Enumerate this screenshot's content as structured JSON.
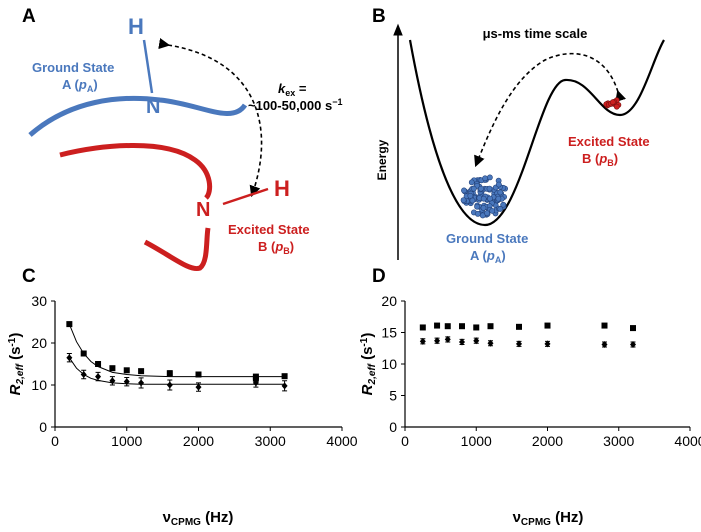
{
  "panels": {
    "labels": [
      "A",
      "B",
      "C",
      "D"
    ]
  },
  "panel_a": {
    "h_top": "H",
    "n_top": "N",
    "ground_state": "Ground State",
    "ground_pop": [
      "A (",
      "p",
      "A",
      ")"
    ],
    "kex": [
      "k",
      "ex",
      " ="
    ],
    "kex_range": [
      "~100-50,000 s",
      "−1"
    ],
    "n_bottom": "N",
    "h_bottom": "H",
    "excited_state": "Excited State",
    "excited_pop": [
      "B (",
      "p",
      "B",
      ")"
    ]
  },
  "panel_b": {
    "title": "μs-ms time scale",
    "y_label": "Energy",
    "excited_state": "Excited State",
    "excited_pop": [
      "B (",
      "p",
      "B",
      ")"
    ],
    "ground_state": "Ground State",
    "ground_pop": [
      "A (",
      "p",
      "A",
      ")"
    ]
  },
  "chart_data": [
    {
      "type": "scatter",
      "x_label": [
        "ν",
        "CPMG",
        " (Hz)"
      ],
      "y_label": [
        "R",
        "2,eff",
        " (s",
        "-1",
        ")"
      ],
      "xlim": [
        0,
        4000
      ],
      "xticks": [
        0,
        1000,
        2000,
        3000,
        4000
      ],
      "ylim": [
        0,
        30
      ],
      "yticks": [
        0,
        10,
        20,
        30
      ],
      "series": [
        {
          "color": "#000000",
          "marker": "square",
          "x": [
            200,
            400,
            600,
            800,
            1000,
            1200,
            1600,
            2000,
            2800,
            2800,
            3200
          ],
          "values": [
            24.5,
            17.5,
            15,
            14,
            13.5,
            13.3,
            12.8,
            12.5,
            12,
            11.5,
            12.1
          ],
          "errors": [
            0.5,
            0.5,
            0.6,
            0.5,
            0.5,
            0.5,
            0.6,
            0.5,
            0.5,
            0.5,
            0.5
          ]
        },
        {
          "color": "#000000",
          "marker": "diamond",
          "x": [
            200,
            400,
            600,
            800,
            1000,
            1200,
            1600,
            2000,
            2800,
            3200
          ],
          "values": [
            16.5,
            12.5,
            12,
            11,
            10.8,
            10.5,
            10,
            9.5,
            10.5,
            9.8
          ],
          "errors": [
            1,
            1,
            1,
            1,
            1,
            1.2,
            1.2,
            1,
            1,
            1.2
          ]
        },
        {
          "color": "#000000",
          "marker": "line",
          "x": [
            200,
            300,
            400,
            500,
            600,
            800,
            1000,
            1200,
            1600,
            2000,
            2400,
            2800,
            3200
          ],
          "values": [
            24.5,
            20.3,
            17.5,
            15.6,
            14.4,
            13,
            12.5,
            12.2,
            12,
            12,
            12,
            12,
            12
          ]
        },
        {
          "color": "#000000",
          "marker": "line",
          "x": [
            200,
            300,
            400,
            500,
            600,
            800,
            1000,
            1200,
            1600,
            2000,
            2400,
            2800,
            3200
          ],
          "values": [
            16.5,
            14,
            12.5,
            11.6,
            11.1,
            10.5,
            10.3,
            10.2,
            10.2,
            10.2,
            10.2,
            10.2,
            10.2
          ]
        }
      ]
    },
    {
      "type": "scatter",
      "x_label": [
        "ν",
        "CPMG",
        " (Hz)"
      ],
      "y_label": [
        "R",
        "2,eff",
        " (s",
        "-1",
        ")"
      ],
      "xlim": [
        0,
        4000
      ],
      "xticks": [
        0,
        1000,
        2000,
        3000,
        4000
      ],
      "ylim": [
        0,
        20
      ],
      "yticks": [
        0,
        5,
        10,
        15,
        20
      ],
      "series": [
        {
          "color": "#000000",
          "marker": "square",
          "x": [
            250,
            450,
            600,
            800,
            1000,
            1200,
            1600,
            2000,
            2800,
            3200
          ],
          "values": [
            15.8,
            16.1,
            16,
            16,
            15.8,
            16,
            15.9,
            16.1,
            16.1,
            15.7
          ],
          "errors": [
            0.3,
            0.3,
            0.3,
            0.3,
            0.3,
            0.3,
            0.3,
            0.3,
            0.3,
            0.3
          ]
        },
        {
          "color": "#000000",
          "marker": "diamond",
          "x": [
            250,
            450,
            600,
            800,
            1000,
            1200,
            1600,
            2000,
            2800,
            3200
          ],
          "values": [
            13.6,
            13.7,
            13.9,
            13.5,
            13.7,
            13.3,
            13.2,
            13.2,
            13.1,
            13.1
          ],
          "errors": [
            0.4,
            0.4,
            0.4,
            0.4,
            0.4,
            0.4,
            0.4,
            0.4,
            0.4,
            0.4
          ]
        }
      ]
    }
  ]
}
